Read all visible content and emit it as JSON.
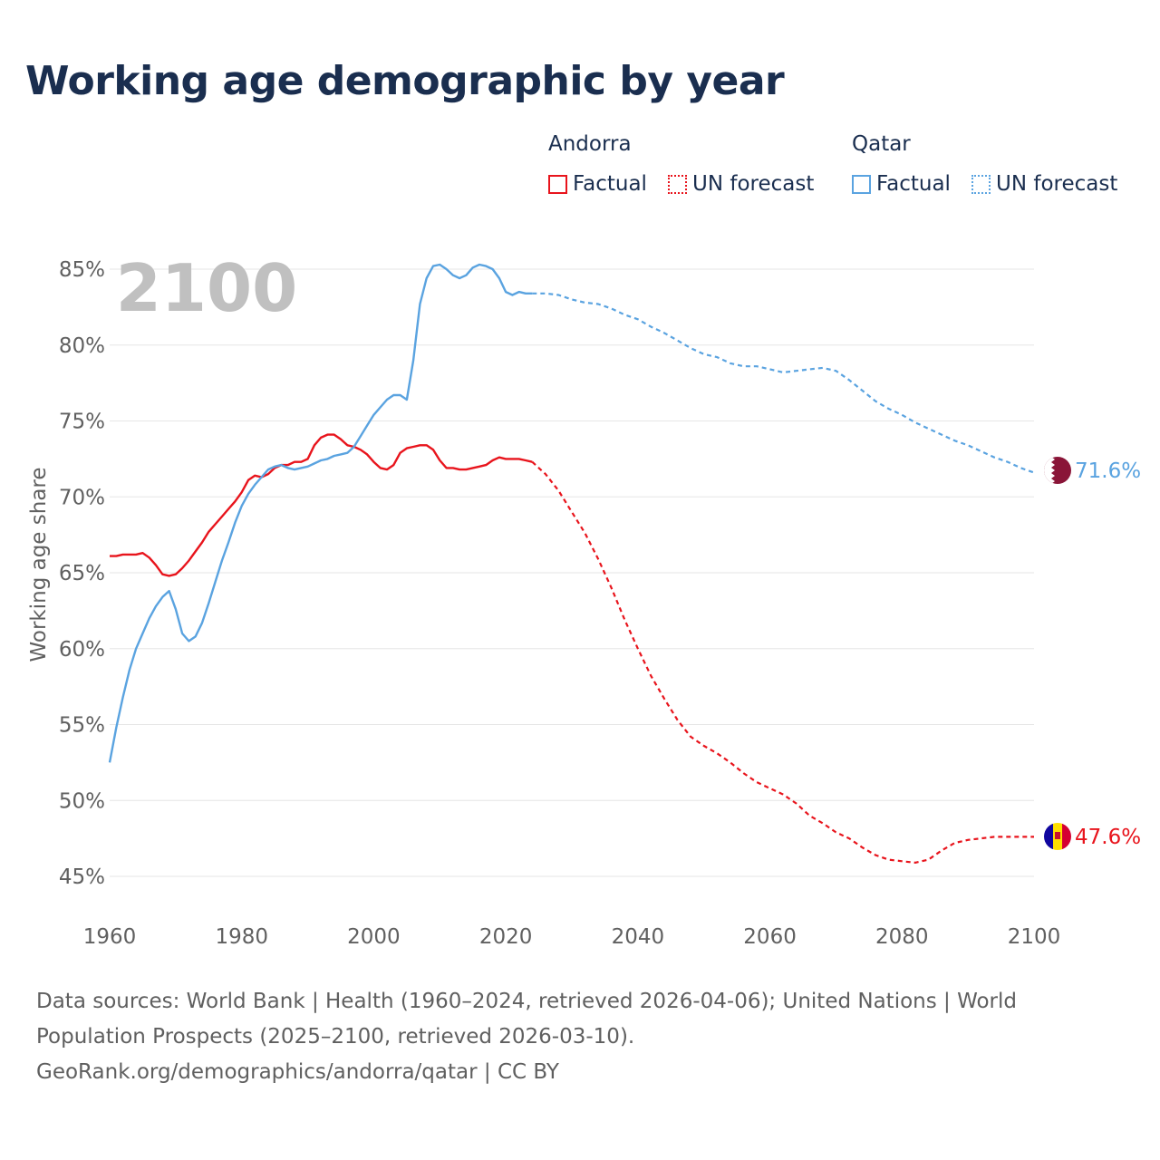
{
  "title": "Working age demographic by year",
  "legend": {
    "groups": [
      {
        "name": "Andorra",
        "items": [
          {
            "label": "Factual",
            "style": "solid",
            "color": "#e8141c"
          },
          {
            "label": "UN forecast",
            "style": "dotted",
            "color": "#e8141c"
          }
        ]
      },
      {
        "name": "Qatar",
        "items": [
          {
            "label": "Factual",
            "style": "solid",
            "color": "#5aa3e0"
          },
          {
            "label": "UN forecast",
            "style": "dotted",
            "color": "#5aa3e0"
          }
        ]
      }
    ]
  },
  "chart_data": {
    "type": "line",
    "title": "Working age demographic by year",
    "xlabel": "",
    "ylabel": "Working age share",
    "xlim": [
      1960,
      2100
    ],
    "ylim": [
      44,
      86.5
    ],
    "x_ticks": [
      1960,
      1980,
      2000,
      2020,
      2040,
      2060,
      2080,
      2100
    ],
    "x_tick_labels": [
      "1960",
      "1980",
      "2000",
      "2020",
      "2040",
      "2060",
      "2080",
      "2100"
    ],
    "y_ticks": [
      45,
      50,
      55,
      60,
      65,
      70,
      75,
      80,
      85
    ],
    "y_tick_labels": [
      "45%",
      "50%",
      "55%",
      "60%",
      "65%",
      "70%",
      "75%",
      "80%",
      "85%"
    ],
    "grid": true,
    "watermark_year": "2100",
    "series": [
      {
        "name": "Andorra",
        "color": "#e8141c",
        "end_label": "47.6%",
        "end_value": 47.6,
        "flag": "andorra-flag",
        "factual": [
          [
            1960,
            66.1
          ],
          [
            1961,
            66.1
          ],
          [
            1962,
            66.2
          ],
          [
            1963,
            66.2
          ],
          [
            1964,
            66.2
          ],
          [
            1965,
            66.3
          ],
          [
            1966,
            66.0
          ],
          [
            1967,
            65.5
          ],
          [
            1968,
            64.9
          ],
          [
            1969,
            64.8
          ],
          [
            1970,
            64.9
          ],
          [
            1971,
            65.3
          ],
          [
            1972,
            65.8
          ],
          [
            1973,
            66.4
          ],
          [
            1974,
            67.0
          ],
          [
            1975,
            67.7
          ],
          [
            1976,
            68.2
          ],
          [
            1977,
            68.7
          ],
          [
            1978,
            69.2
          ],
          [
            1979,
            69.7
          ],
          [
            1980,
            70.3
          ],
          [
            1981,
            71.1
          ],
          [
            1982,
            71.4
          ],
          [
            1983,
            71.3
          ],
          [
            1984,
            71.5
          ],
          [
            1985,
            71.9
          ],
          [
            1986,
            72.1
          ],
          [
            1987,
            72.1
          ],
          [
            1988,
            72.3
          ],
          [
            1989,
            72.3
          ],
          [
            1990,
            72.5
          ],
          [
            1991,
            73.4
          ],
          [
            1992,
            73.9
          ],
          [
            1993,
            74.1
          ],
          [
            1994,
            74.1
          ],
          [
            1995,
            73.8
          ],
          [
            1996,
            73.4
          ],
          [
            1997,
            73.3
          ],
          [
            1998,
            73.1
          ],
          [
            1999,
            72.8
          ],
          [
            2000,
            72.3
          ],
          [
            2001,
            71.9
          ],
          [
            2002,
            71.8
          ],
          [
            2003,
            72.1
          ],
          [
            2004,
            72.9
          ],
          [
            2005,
            73.2
          ],
          [
            2006,
            73.3
          ],
          [
            2007,
            73.4
          ],
          [
            2008,
            73.4
          ],
          [
            2009,
            73.1
          ],
          [
            2010,
            72.4
          ],
          [
            2011,
            71.9
          ],
          [
            2012,
            71.9
          ],
          [
            2013,
            71.8
          ],
          [
            2014,
            71.8
          ],
          [
            2015,
            71.9
          ],
          [
            2016,
            72.0
          ],
          [
            2017,
            72.1
          ],
          [
            2018,
            72.4
          ],
          [
            2019,
            72.6
          ],
          [
            2020,
            72.5
          ],
          [
            2021,
            72.5
          ],
          [
            2022,
            72.5
          ],
          [
            2023,
            72.4
          ],
          [
            2024,
            72.3
          ]
        ],
        "forecast": [
          [
            2024,
            72.3
          ],
          [
            2026,
            71.5
          ],
          [
            2028,
            70.4
          ],
          [
            2030,
            69.0
          ],
          [
            2032,
            67.6
          ],
          [
            2034,
            65.9
          ],
          [
            2036,
            64.0
          ],
          [
            2038,
            61.9
          ],
          [
            2040,
            60.0
          ],
          [
            2042,
            58.2
          ],
          [
            2044,
            56.7
          ],
          [
            2046,
            55.3
          ],
          [
            2048,
            54.2
          ],
          [
            2050,
            53.6
          ],
          [
            2052,
            53.1
          ],
          [
            2054,
            52.5
          ],
          [
            2056,
            51.8
          ],
          [
            2058,
            51.2
          ],
          [
            2060,
            50.8
          ],
          [
            2062,
            50.4
          ],
          [
            2064,
            49.8
          ],
          [
            2066,
            49.0
          ],
          [
            2068,
            48.5
          ],
          [
            2070,
            47.9
          ],
          [
            2072,
            47.5
          ],
          [
            2074,
            46.9
          ],
          [
            2076,
            46.4
          ],
          [
            2078,
            46.1
          ],
          [
            2080,
            46.0
          ],
          [
            2082,
            45.9
          ],
          [
            2084,
            46.1
          ],
          [
            2086,
            46.7
          ],
          [
            2088,
            47.2
          ],
          [
            2090,
            47.4
          ],
          [
            2092,
            47.5
          ],
          [
            2094,
            47.6
          ],
          [
            2096,
            47.6
          ],
          [
            2098,
            47.6
          ],
          [
            2100,
            47.6
          ]
        ]
      },
      {
        "name": "Qatar",
        "color": "#5aa3e0",
        "end_label": "71.6%",
        "end_value": 71.6,
        "flag": "qatar-flag",
        "factual": [
          [
            1960,
            52.5
          ],
          [
            1961,
            54.8
          ],
          [
            1962,
            56.8
          ],
          [
            1963,
            58.6
          ],
          [
            1964,
            60.0
          ],
          [
            1965,
            61.0
          ],
          [
            1966,
            62.0
          ],
          [
            1967,
            62.8
          ],
          [
            1968,
            63.4
          ],
          [
            1969,
            63.8
          ],
          [
            1970,
            62.6
          ],
          [
            1971,
            61.0
          ],
          [
            1972,
            60.5
          ],
          [
            1973,
            60.8
          ],
          [
            1974,
            61.7
          ],
          [
            1975,
            63.0
          ],
          [
            1976,
            64.4
          ],
          [
            1977,
            65.8
          ],
          [
            1978,
            67.0
          ],
          [
            1979,
            68.3
          ],
          [
            1980,
            69.4
          ],
          [
            1981,
            70.2
          ],
          [
            1982,
            70.8
          ],
          [
            1983,
            71.3
          ],
          [
            1984,
            71.8
          ],
          [
            1985,
            72.0
          ],
          [
            1986,
            72.1
          ],
          [
            1987,
            71.9
          ],
          [
            1988,
            71.8
          ],
          [
            1989,
            71.9
          ],
          [
            1990,
            72.0
          ],
          [
            1991,
            72.2
          ],
          [
            1992,
            72.4
          ],
          [
            1993,
            72.5
          ],
          [
            1994,
            72.7
          ],
          [
            1995,
            72.8
          ],
          [
            1996,
            72.9
          ],
          [
            1997,
            73.3
          ],
          [
            1998,
            74.0
          ],
          [
            1999,
            74.7
          ],
          [
            2000,
            75.4
          ],
          [
            2001,
            75.9
          ],
          [
            2002,
            76.4
          ],
          [
            2003,
            76.7
          ],
          [
            2004,
            76.7
          ],
          [
            2005,
            76.4
          ],
          [
            2006,
            79.0
          ],
          [
            2007,
            82.7
          ],
          [
            2008,
            84.4
          ],
          [
            2009,
            85.2
          ],
          [
            2010,
            85.3
          ],
          [
            2011,
            85.0
          ],
          [
            2012,
            84.6
          ],
          [
            2013,
            84.4
          ],
          [
            2014,
            84.6
          ],
          [
            2015,
            85.1
          ],
          [
            2016,
            85.3
          ],
          [
            2017,
            85.2
          ],
          [
            2018,
            85.0
          ],
          [
            2019,
            84.4
          ],
          [
            2020,
            83.5
          ],
          [
            2021,
            83.3
          ],
          [
            2022,
            83.5
          ],
          [
            2023,
            83.4
          ],
          [
            2024,
            83.4
          ]
        ],
        "forecast": [
          [
            2024,
            83.4
          ],
          [
            2026,
            83.4
          ],
          [
            2028,
            83.3
          ],
          [
            2030,
            83.0
          ],
          [
            2032,
            82.8
          ],
          [
            2034,
            82.7
          ],
          [
            2036,
            82.4
          ],
          [
            2038,
            82.0
          ],
          [
            2040,
            81.7
          ],
          [
            2042,
            81.2
          ],
          [
            2044,
            80.8
          ],
          [
            2046,
            80.3
          ],
          [
            2048,
            79.8
          ],
          [
            2050,
            79.4
          ],
          [
            2052,
            79.2
          ],
          [
            2054,
            78.8
          ],
          [
            2056,
            78.6
          ],
          [
            2058,
            78.6
          ],
          [
            2060,
            78.4
          ],
          [
            2062,
            78.2
          ],
          [
            2064,
            78.3
          ],
          [
            2066,
            78.4
          ],
          [
            2068,
            78.5
          ],
          [
            2070,
            78.3
          ],
          [
            2072,
            77.7
          ],
          [
            2074,
            77.0
          ],
          [
            2076,
            76.3
          ],
          [
            2078,
            75.8
          ],
          [
            2080,
            75.4
          ],
          [
            2082,
            74.9
          ],
          [
            2084,
            74.5
          ],
          [
            2086,
            74.1
          ],
          [
            2088,
            73.7
          ],
          [
            2090,
            73.4
          ],
          [
            2092,
            73.0
          ],
          [
            2094,
            72.6
          ],
          [
            2096,
            72.3
          ],
          [
            2098,
            71.9
          ],
          [
            2100,
            71.6
          ]
        ]
      }
    ]
  },
  "footer": {
    "line1": "Data sources: World Bank | Health (1960–2024, retrieved 2026-04-06); United Nations | World",
    "line2": "Population Prospects (2025–2100, retrieved 2026-03-10).",
    "line3": "GeoRank.org/demographics/andorra/qatar | CC BY"
  }
}
